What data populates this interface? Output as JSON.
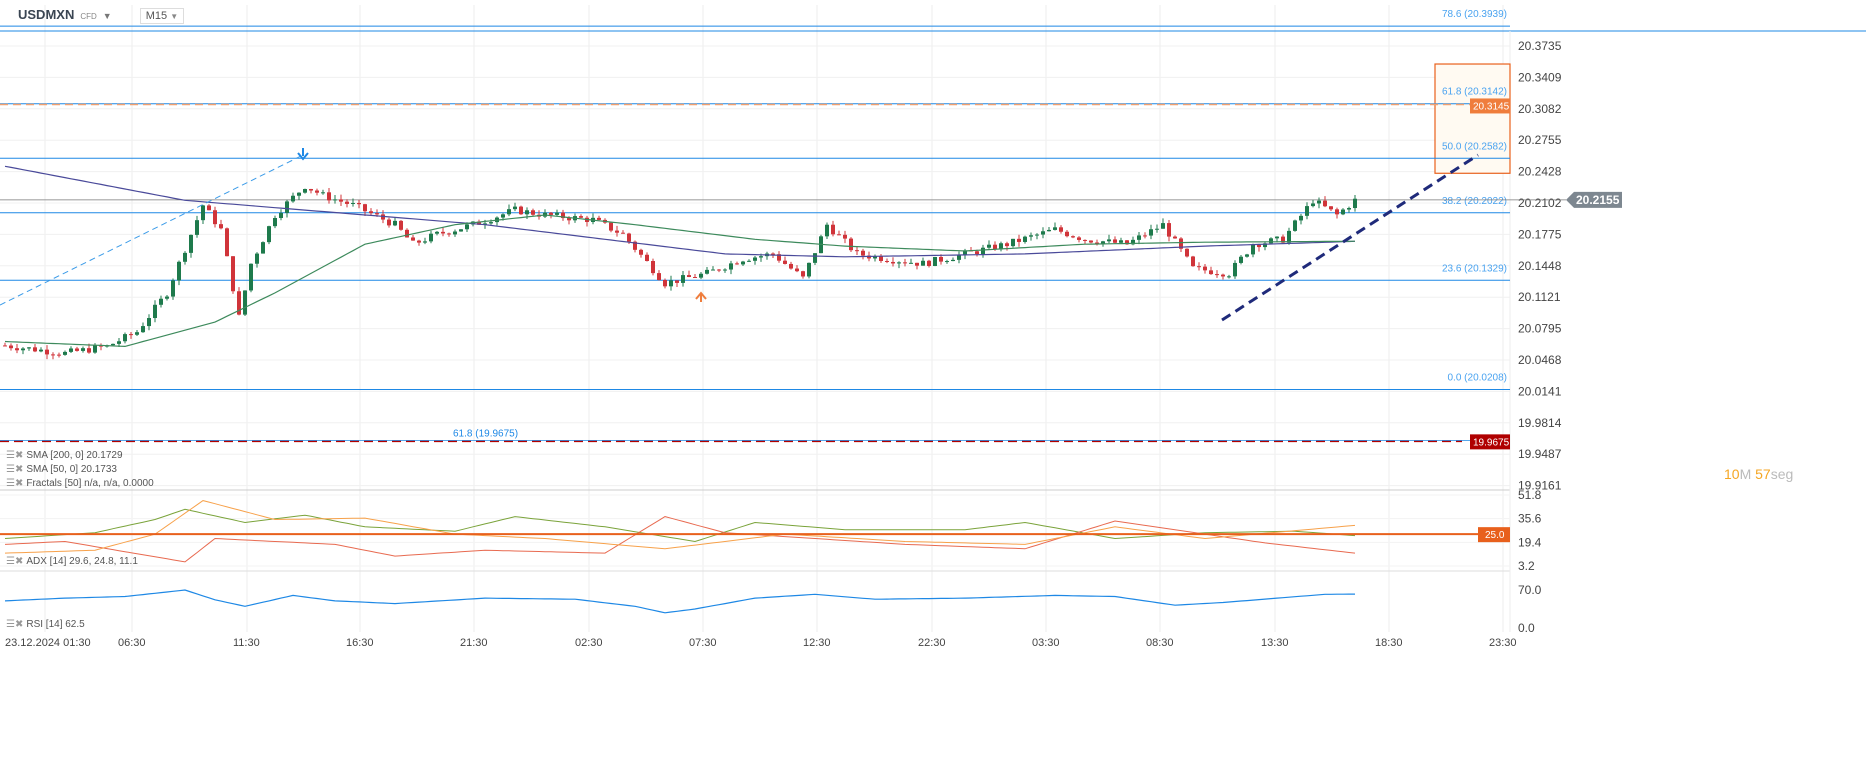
{
  "header": {
    "symbol": "USDMXN",
    "type": "CFD",
    "timeframe": "M15"
  },
  "legend": {
    "sma200": "SMA [200, 0] 20.1729",
    "sma50": "SMA [50, 0] 20.1733",
    "fractals": "Fractals  [50]  n/a,  n/a,  0.0000",
    "adx": "ADX [14]  29.6,  24.8,  11.1",
    "rsi": "RSI [14]  62.5"
  },
  "timer": {
    "min": "10",
    "min_unit": "M",
    "sec": "57",
    "sec_unit": "seg"
  },
  "colors": {
    "up": "#1e7a4c",
    "down": "#d0343a",
    "fib": "#1e88e5",
    "sma50": "#3d8a5c",
    "sma200": "#4a4a9a",
    "trend": "#1f2a7a",
    "orange": "#e8601c",
    "darkred": "#b00000"
  },
  "chart_data": {
    "type": "candlestick",
    "title": "USDMXN M15",
    "price_axis": {
      "ticks": [
        "20.3735",
        "20.3409",
        "20.3082",
        "20.2755",
        "20.2428",
        "20.2102",
        "20.1775",
        "20.1448",
        "20.1121",
        "20.0795",
        "20.0468",
        "20.0141",
        "19.9814",
        "19.9487",
        "19.9161"
      ],
      "current": "20.2155"
    },
    "time_axis": [
      "23.12.2024  01:30",
      "06:30",
      "11:30",
      "16:30",
      "21:30",
      "02:30",
      "07:30",
      "12:30",
      "22:30",
      "03:30",
      "08:30",
      "13:30",
      "18:30",
      "23:30"
    ],
    "price_path": [
      [
        0,
        20.066
      ],
      [
        10,
        20.058
      ],
      [
        17,
        20.065
      ],
      [
        22,
        20.08
      ],
      [
        27,
        20.12
      ],
      [
        33,
        20.21
      ],
      [
        36,
        20.185
      ],
      [
        39,
        20.095
      ],
      [
        41,
        20.15
      ],
      [
        45,
        20.2
      ],
      [
        50,
        20.23
      ],
      [
        53,
        20.22
      ],
      [
        58,
        20.21
      ],
      [
        65,
        20.19
      ],
      [
        68,
        20.17
      ],
      [
        72,
        20.18
      ],
      [
        78,
        20.19
      ],
      [
        85,
        20.205
      ],
      [
        90,
        20.2
      ],
      [
        98,
        20.195
      ],
      [
        103,
        20.18
      ],
      [
        110,
        20.13
      ],
      [
        117,
        20.14
      ],
      [
        123,
        20.155
      ],
      [
        128,
        20.16
      ],
      [
        133,
        20.135
      ],
      [
        137,
        20.19
      ],
      [
        142,
        20.16
      ],
      [
        147,
        20.155
      ],
      [
        153,
        20.15
      ],
      [
        160,
        20.16
      ],
      [
        167,
        20.17
      ],
      [
        175,
        20.185
      ],
      [
        180,
        20.175
      ],
      [
        187,
        20.17
      ],
      [
        193,
        20.19
      ],
      [
        198,
        20.145
      ],
      [
        204,
        20.14
      ],
      [
        208,
        20.17
      ],
      [
        213,
        20.175
      ],
      [
        218,
        20.215
      ],
      [
        222,
        20.2
      ],
      [
        225,
        20.215
      ]
    ],
    "sma50": [
      [
        0,
        20.07
      ],
      [
        20,
        20.065
      ],
      [
        35,
        20.09
      ],
      [
        45,
        20.12
      ],
      [
        60,
        20.17
      ],
      [
        75,
        20.19
      ],
      [
        90,
        20.2
      ],
      [
        105,
        20.19
      ],
      [
        125,
        20.175
      ],
      [
        140,
        20.168
      ],
      [
        160,
        20.163
      ],
      [
        180,
        20.17
      ],
      [
        200,
        20.172
      ],
      [
        225,
        20.173
      ]
    ],
    "sma200": [
      [
        0,
        20.25
      ],
      [
        30,
        20.215
      ],
      [
        60,
        20.2
      ],
      [
        80,
        20.19
      ],
      [
        100,
        20.175
      ],
      [
        120,
        20.16
      ],
      [
        140,
        20.157
      ],
      [
        170,
        20.16
      ],
      [
        200,
        20.168
      ],
      [
        225,
        20.1729
      ]
    ],
    "fibonacci": [
      {
        "label": "78.6 (20.3939)",
        "price": 20.3939
      },
      {
        "label": "61.8 (20.3142)",
        "price": 20.3142
      },
      {
        "label": "50.0 (20.2582)",
        "price": 20.2582
      },
      {
        "label": "38.2 (20.2022)",
        "price": 20.2022
      },
      {
        "label": "23.6 (20.1329)",
        "price": 20.1329
      },
      {
        "label": "0.0 (20.0208)",
        "price": 20.0208
      }
    ],
    "lines": {
      "orange_level": "20.3145",
      "red_level": "19.9675",
      "red_label": "61.8 (19.9675)"
    },
    "zone": {
      "top": 20.355,
      "bottom": 20.2428
    },
    "adx": {
      "ticks": [
        "51.8",
        "35.6",
        "19.4",
        "3.2"
      ],
      "level": "25.0",
      "range": [
        0,
        55
      ],
      "adx": [
        [
          0,
          12
        ],
        [
          15,
          14
        ],
        [
          25,
          25
        ],
        [
          33,
          48
        ],
        [
          45,
          35
        ],
        [
          60,
          36
        ],
        [
          75,
          25
        ],
        [
          90,
          22
        ],
        [
          110,
          15
        ],
        [
          130,
          25
        ],
        [
          150,
          20
        ],
        [
          170,
          18
        ],
        [
          185,
          30
        ],
        [
          200,
          22
        ],
        [
          225,
          31
        ]
      ],
      "plus": [
        [
          0,
          22
        ],
        [
          15,
          26
        ],
        [
          25,
          35
        ],
        [
          30,
          42
        ],
        [
          40,
          33
        ],
        [
          50,
          38
        ],
        [
          60,
          30
        ],
        [
          75,
          27
        ],
        [
          85,
          37
        ],
        [
          100,
          30
        ],
        [
          115,
          20
        ],
        [
          125,
          33
        ],
        [
          140,
          28
        ],
        [
          160,
          28
        ],
        [
          170,
          33
        ],
        [
          185,
          22
        ],
        [
          200,
          26
        ],
        [
          215,
          27
        ],
        [
          225,
          24
        ]
      ],
      "minus": [
        [
          0,
          18
        ],
        [
          10,
          20
        ],
        [
          20,
          13
        ],
        [
          30,
          6
        ],
        [
          35,
          22
        ],
        [
          45,
          20
        ],
        [
          55,
          18
        ],
        [
          65,
          10
        ],
        [
          80,
          14
        ],
        [
          100,
          12
        ],
        [
          110,
          37
        ],
        [
          120,
          26
        ],
        [
          135,
          22
        ],
        [
          150,
          18
        ],
        [
          170,
          15
        ],
        [
          185,
          34
        ],
        [
          195,
          28
        ],
        [
          210,
          19
        ],
        [
          225,
          12
        ]
      ]
    },
    "rsi": {
      "ticks": [
        "70.0",
        "0.0"
      ],
      "range": [
        0,
        100
      ],
      "values": [
        [
          0,
          50
        ],
        [
          10,
          55
        ],
        [
          20,
          58
        ],
        [
          30,
          70
        ],
        [
          35,
          52
        ],
        [
          40,
          40
        ],
        [
          48,
          60
        ],
        [
          55,
          50
        ],
        [
          65,
          45
        ],
        [
          80,
          55
        ],
        [
          95,
          53
        ],
        [
          105,
          40
        ],
        [
          110,
          28
        ],
        [
          115,
          35
        ],
        [
          125,
          55
        ],
        [
          135,
          62
        ],
        [
          145,
          53
        ],
        [
          160,
          55
        ],
        [
          175,
          60
        ],
        [
          185,
          58
        ],
        [
          195,
          42
        ],
        [
          203,
          47
        ],
        [
          212,
          55
        ],
        [
          220,
          62
        ],
        [
          225,
          62.5
        ]
      ]
    }
  }
}
